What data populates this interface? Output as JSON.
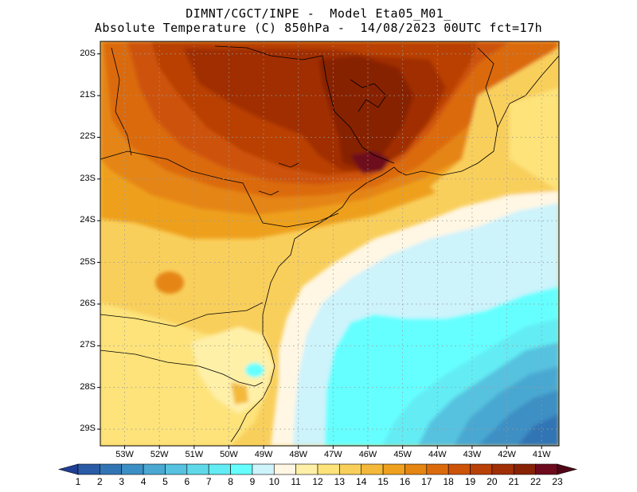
{
  "title_line1": "DIMNT/CGCT/INPE -  Model Eta05_M01_",
  "title_line2": "Absolute Temperature (C) 850hPa -  14/08/2023 00UTC fct=17h",
  "lat_labels": [
    "20S",
    "21S",
    "22S",
    "23S",
    "24S",
    "25S",
    "26S",
    "27S",
    "28S",
    "29S"
  ],
  "lon_labels": [
    "53W",
    "52W",
    "51W",
    "50W",
    "49W",
    "48W",
    "47W",
    "46W",
    "45W",
    "44W",
    "43W",
    "42W",
    "41W"
  ],
  "colorbar": {
    "labels": [
      "1",
      "2",
      "3",
      "4",
      "5",
      "6",
      "7",
      "8",
      "9",
      "10",
      "11",
      "12",
      "13",
      "14",
      "15",
      "16",
      "17",
      "18",
      "19",
      "20",
      "21",
      "22",
      "23"
    ],
    "colors": [
      "#1f3e94",
      "#2a5ba6",
      "#3275b5",
      "#3c8fc4",
      "#4aa8d2",
      "#56c2e0",
      "#5fd9ea",
      "#63ecf4",
      "#66ffff",
      "#cdf3fb",
      "#fff7e4",
      "#fff0a8",
      "#fde37a",
      "#f9cf5c",
      "#f4b93a",
      "#eea01e",
      "#e58512",
      "#db6a0c",
      "#cd5308",
      "#b94006",
      "#a02f05",
      "#872205",
      "#6e0a1e",
      "#4f0515"
    ]
  },
  "map": {
    "lat_range": [
      -29.4,
      -19.7
    ],
    "lon_range": [
      -53.7,
      -40.5
    ],
    "grid": true,
    "ocean_color": "#66ffff",
    "coastline_color": "#000000"
  }
}
